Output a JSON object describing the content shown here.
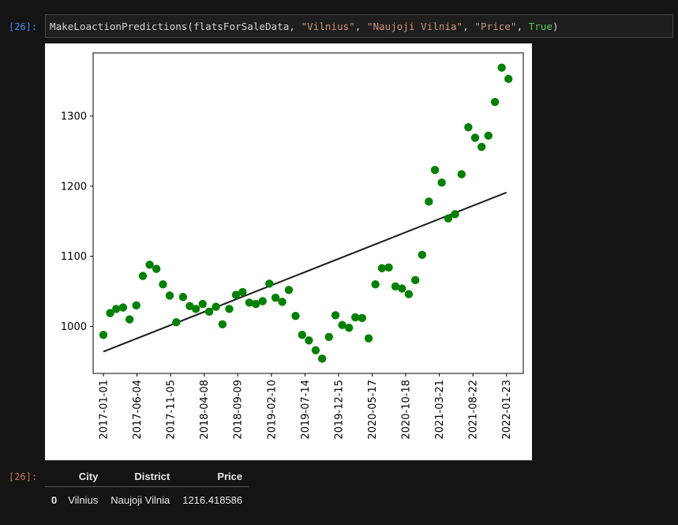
{
  "input_cell": {
    "prompt": "[26]:",
    "code": {
      "fn": "MakeLoactionPredictions(flatsForSaleData, ",
      "arg_city": "\"Vilnius\"",
      "sep1": ", ",
      "arg_district": "\"Naujoji Vilnia\"",
      "sep2": ", ",
      "arg_column": "\"Price\"",
      "sep3": ", ",
      "arg_flag": "True",
      "close": ")"
    }
  },
  "output": {
    "prompt": "[26]:",
    "table": {
      "columns": [
        "",
        "City",
        "District",
        "Price"
      ],
      "rows": [
        {
          "index": "0",
          "City": "Vilnius",
          "District": "Naujoji Vilnia",
          "Price": "1216.418586"
        }
      ]
    }
  },
  "colors": {
    "points": "#008000",
    "trend_line": "#1a1a1a",
    "plot_background": "#ffffff"
  },
  "chart_data": {
    "type": "scatter",
    "title": "",
    "xlabel": "",
    "ylabel": "",
    "grid": false,
    "legend": "none",
    "x_tick_labels": [
      "2017-01-01",
      "2017-06-04",
      "2017-11-05",
      "2018-04-08",
      "2018-09-09",
      "2019-02-10",
      "2019-07-14",
      "2019-12-15",
      "2020-05-17",
      "2020-10-18",
      "2021-03-21",
      "2021-08-22",
      "2022-01-23"
    ],
    "y_ticks": [
      1000,
      1100,
      1200,
      1300
    ],
    "ylim": [
      933,
      1390
    ],
    "xlim": [
      "2016-11-15",
      "2022-04-10"
    ],
    "series": [
      {
        "type": "scatter",
        "x": [
          "2017-01-01",
          "2017-02-01",
          "2017-03-01",
          "2017-04-01",
          "2017-05-01",
          "2017-06-01",
          "2017-07-01",
          "2017-08-01",
          "2017-09-01",
          "2017-10-01",
          "2017-11-01",
          "2017-12-01",
          "2018-01-01",
          "2018-02-01",
          "2018-03-01",
          "2018-04-01",
          "2018-05-01",
          "2018-06-01",
          "2018-07-01",
          "2018-08-01",
          "2018-09-01",
          "2018-10-01",
          "2018-11-01",
          "2018-12-01",
          "2019-01-01",
          "2019-02-01",
          "2019-03-01",
          "2019-04-01",
          "2019-05-01",
          "2019-06-01",
          "2019-07-01",
          "2019-08-01",
          "2019-09-01",
          "2019-10-01",
          "2019-11-01",
          "2019-12-01",
          "2020-01-01",
          "2020-02-01",
          "2020-03-01",
          "2020-04-01",
          "2020-05-01",
          "2020-06-01",
          "2020-07-01",
          "2020-08-01",
          "2020-09-01",
          "2020-10-01",
          "2020-11-01",
          "2020-12-01",
          "2021-01-01",
          "2021-02-01",
          "2021-03-01",
          "2021-04-01",
          "2021-05-01",
          "2021-06-01",
          "2021-07-01",
          "2021-08-01",
          "2021-09-01",
          "2021-10-01",
          "2021-11-01",
          "2021-12-01",
          "2022-01-01",
          "2022-02-01"
        ],
        "y": [
          988,
          1019,
          1025,
          1027,
          1010,
          1030,
          1072,
          1088,
          1082,
          1060,
          1044,
          1006,
          1042,
          1029,
          1025,
          1032,
          1021,
          1028,
          1003,
          1025,
          1045,
          1049,
          1034,
          1032,
          1036,
          1061,
          1041,
          1035,
          1052,
          1015,
          988,
          980,
          966,
          954,
          985,
          1016,
          1002,
          998,
          1013,
          1012,
          983,
          1060,
          1083,
          1084,
          1057,
          1054,
          1046,
          1066,
          1102,
          1178,
          1223,
          1205,
          1154,
          1160,
          1217,
          1284,
          1269,
          1256,
          1272,
          1320,
          1369,
          1353
        ]
      },
      {
        "type": "line",
        "x": [
          "2017-01-01",
          "2022-01-23"
        ],
        "y": [
          964,
          1191
        ]
      }
    ]
  }
}
